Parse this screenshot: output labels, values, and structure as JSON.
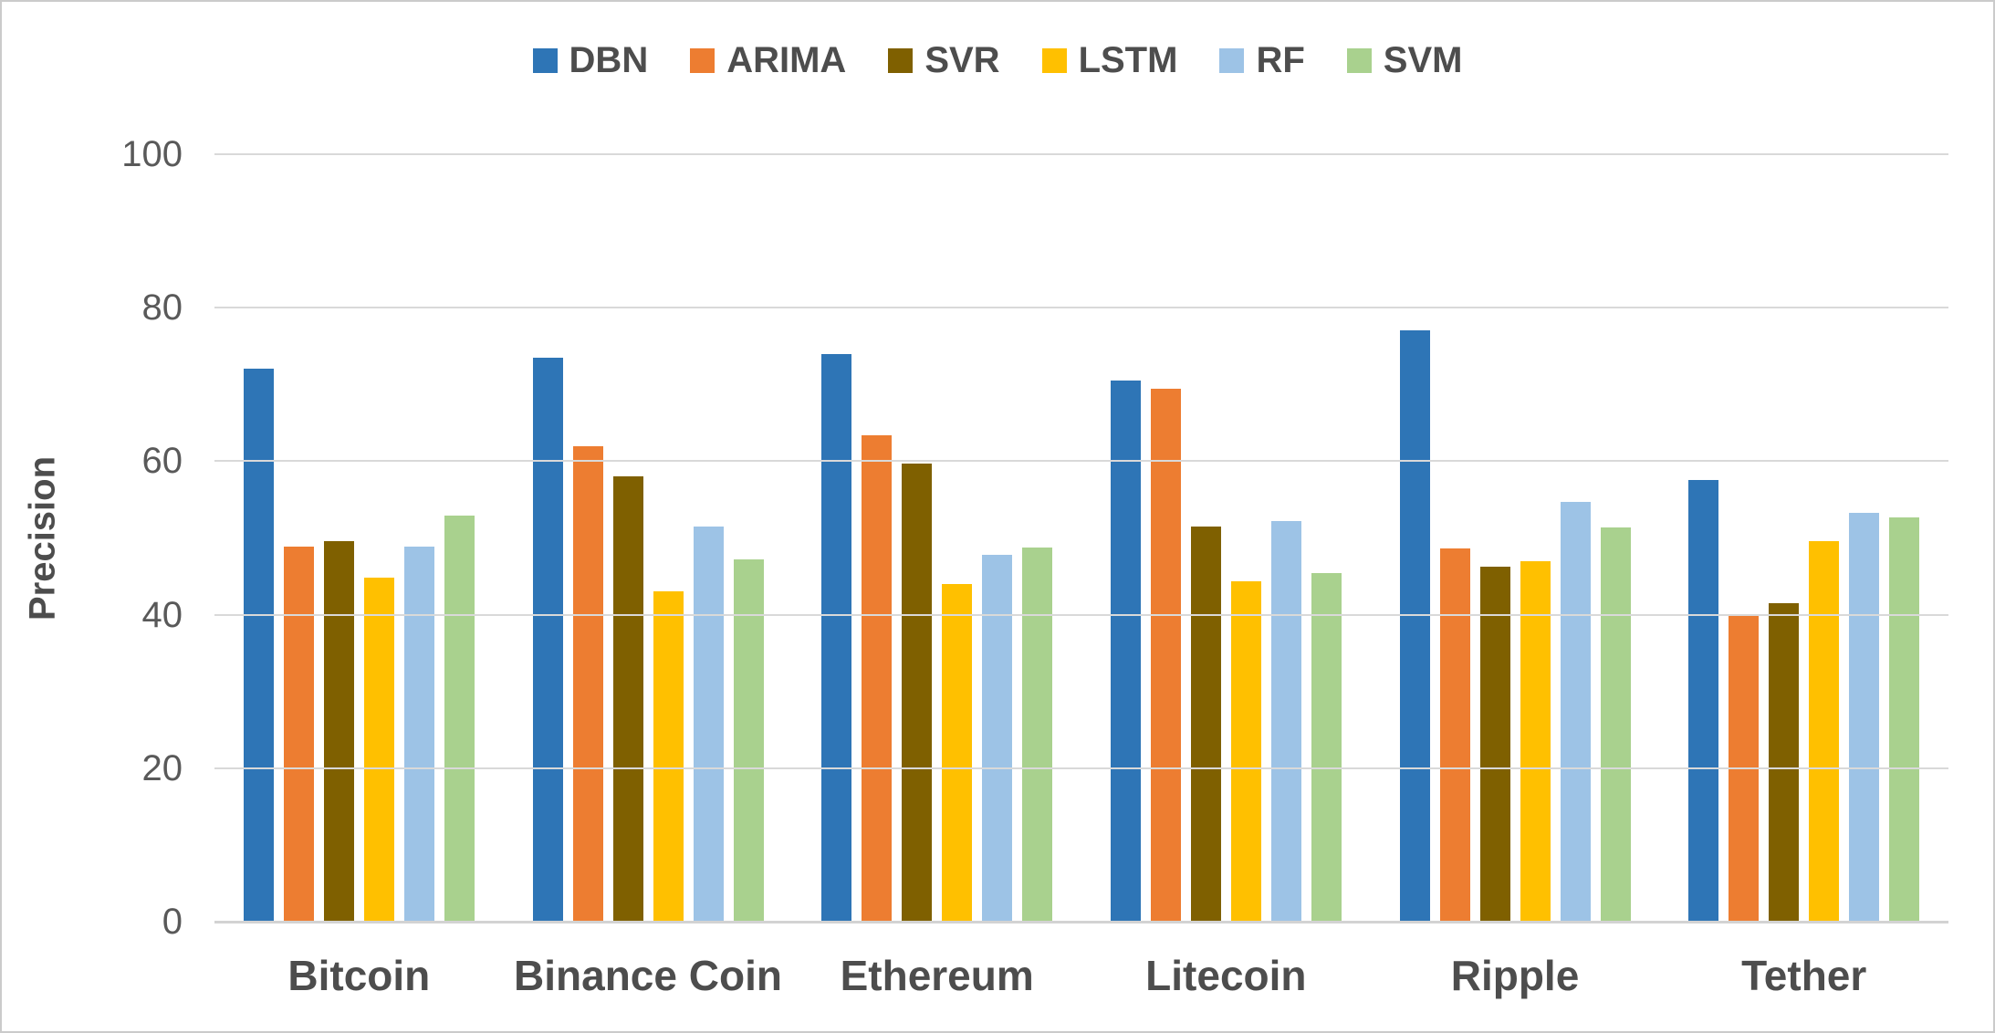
{
  "chart_data": {
    "type": "bar",
    "title": "",
    "ylabel": "Precision",
    "xlabel": "",
    "ylim": [
      0,
      100
    ],
    "yticks": [
      0,
      20,
      40,
      60,
      80,
      100
    ],
    "grid": true,
    "legend_position": "top",
    "categories": [
      "Bitcoin",
      "Binance Coin",
      "Ethereum",
      "Litecoin",
      "Ripple",
      "Tether"
    ],
    "series": [
      {
        "name": "DBN",
        "color": "#2E75B6",
        "values": [
          72.0,
          73.5,
          74.0,
          70.5,
          77.0,
          57.5
        ]
      },
      {
        "name": "ARIMA",
        "color": "#ED7D31",
        "values": [
          48.9,
          62.0,
          63.4,
          69.4,
          48.6,
          40.0
        ]
      },
      {
        "name": "SVR",
        "color": "#7F6000",
        "values": [
          49.6,
          58.0,
          59.7,
          51.5,
          46.3,
          41.5
        ]
      },
      {
        "name": "LSTM",
        "color": "#FFC000",
        "values": [
          44.8,
          43.0,
          44.0,
          44.4,
          47.0,
          49.6
        ]
      },
      {
        "name": "RF",
        "color": "#9DC3E6",
        "values": [
          48.9,
          51.5,
          47.8,
          52.2,
          54.7,
          53.3
        ]
      },
      {
        "name": "SVM",
        "color": "#A9D18E",
        "values": [
          52.9,
          47.2,
          48.8,
          45.4,
          51.4,
          52.7
        ]
      }
    ]
  },
  "styles": {
    "background": "#FFFFFF",
    "border_color": "#CBCBCB",
    "grid_color": "#D9D9D9",
    "axis_color": "#D3D3D3",
    "tick_color": "#595959",
    "label_color": "#4D4D4D"
  }
}
